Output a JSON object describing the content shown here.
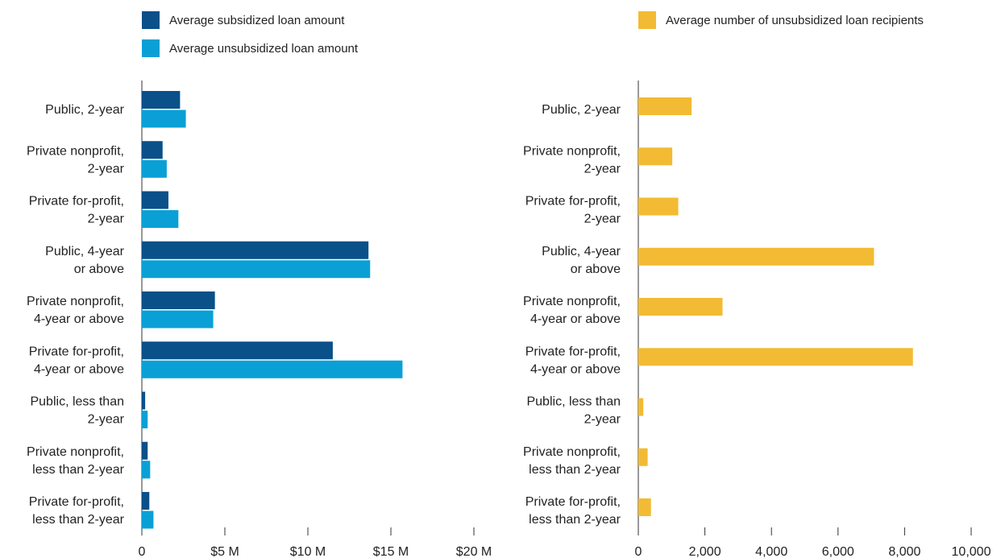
{
  "legend": {
    "left": [
      {
        "label": "Average subsidized loan amount",
        "color": "#0a5089"
      },
      {
        "label": "Average unsubsidized loan amount",
        "color": "#0aa0d6"
      }
    ],
    "right": [
      {
        "label": "Average number of unsubsidized loan recipients",
        "color": "#f2bb33"
      }
    ]
  },
  "chart_data": [
    {
      "type": "bar",
      "orientation": "horizontal",
      "categories": [
        [
          "Public, 2-year"
        ],
        [
          "Private nonprofit,",
          "2-year"
        ],
        [
          "Private for-profit,",
          "2-year"
        ],
        [
          "Public, 4-year",
          "or above"
        ],
        [
          "Private nonprofit,",
          "4-year or above"
        ],
        [
          "Private for-profit,",
          "4-year or above"
        ],
        [
          "Public, less than",
          "2-year"
        ],
        [
          "Private nonprofit,",
          "less than 2-year"
        ],
        [
          "Private for-profit,",
          "less than 2-year"
        ]
      ],
      "series": [
        {
          "name": "Average subsidized loan amount",
          "color": "#0a5089",
          "values": [
            2.3,
            1.25,
            1.6,
            13.65,
            4.4,
            11.5,
            0.2,
            0.35,
            0.45
          ]
        },
        {
          "name": "Average unsubsidized loan amount",
          "color": "#0aa0d6",
          "values": [
            2.65,
            1.5,
            2.2,
            13.75,
            4.3,
            15.7,
            0.35,
            0.5,
            0.7
          ]
        }
      ],
      "xlim": [
        0,
        20
      ],
      "xticks": [
        0,
        5,
        10,
        15,
        20
      ],
      "xtick_labels": [
        "0",
        "$5 M",
        "$10 M",
        "$15 M",
        "$20 M"
      ]
    },
    {
      "type": "bar",
      "orientation": "horizontal",
      "categories": [
        [
          "Public, 2-year"
        ],
        [
          "Private nonprofit,",
          "2-year"
        ],
        [
          "Private for-profit,",
          "2-year"
        ],
        [
          "Public, 4-year",
          "or above"
        ],
        [
          "Private nonprofit,",
          "4-year or above"
        ],
        [
          "Private for-profit,",
          "4-year or above"
        ],
        [
          "Public, less than",
          "2-year"
        ],
        [
          "Private nonprofit,",
          "less than 2-year"
        ],
        [
          "Private for-profit,",
          "less than 2-year"
        ]
      ],
      "series": [
        {
          "name": "Average number of unsubsidized loan recipients",
          "color": "#f2bb33",
          "values": [
            1600,
            1020,
            1200,
            7080,
            2530,
            8250,
            150,
            280,
            380
          ]
        }
      ],
      "xlim": [
        0,
        10000
      ],
      "xticks": [
        0,
        2000,
        4000,
        6000,
        8000,
        10000
      ],
      "xtick_labels": [
        "0",
        "2,000",
        "4,000",
        "6,000",
        "8,000",
        "10,000"
      ]
    }
  ]
}
